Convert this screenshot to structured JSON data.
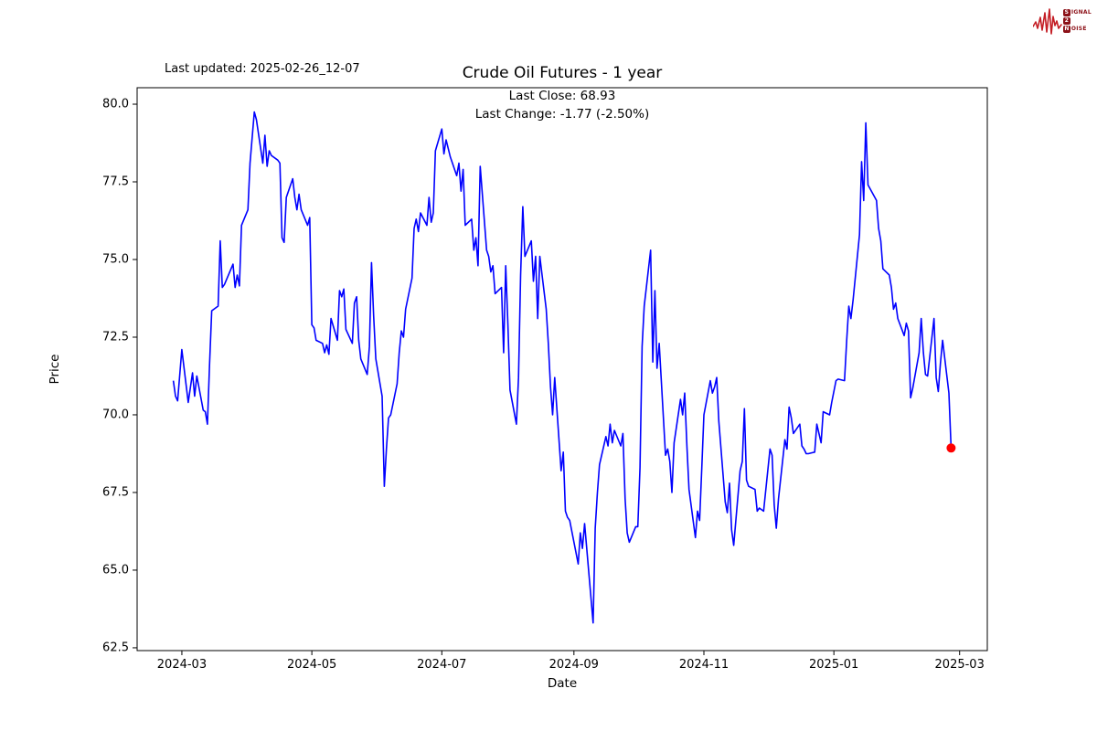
{
  "header": {
    "last_updated": "Last updated: 2025-02-26_12-07",
    "title": "Crude Oil Futures - 1 year",
    "annotation_line1": "Last Close: 68.93",
    "annotation_line2": "Last Change: -1.77 (-2.50%)"
  },
  "logo": {
    "badge1": "S",
    "rest1": "IGNAL",
    "badge2": "2",
    "badge3": "N",
    "rest3": "OISE",
    "wave_color": "#c41e25",
    "badge_color": "#8c1118"
  },
  "chart_data": {
    "type": "line",
    "title": "Crude Oil Futures - 1 year",
    "xlabel": "Date",
    "ylabel": "Price",
    "legend": "none",
    "grid": false,
    "line_color": "#0000ff",
    "marker_color": "#ff0000",
    "axis_color": "#000000",
    "xlim": [
      "2024-02-09",
      "2025-03-14"
    ],
    "ylim": [
      62.41,
      80.53
    ],
    "x_ticks": [
      {
        "label": "2024-03",
        "date": "2024-03-01"
      },
      {
        "label": "2024-05",
        "date": "2024-05-01"
      },
      {
        "label": "2024-07",
        "date": "2024-07-01"
      },
      {
        "label": "2024-09",
        "date": "2024-09-01"
      },
      {
        "label": "2024-11",
        "date": "2024-11-01"
      },
      {
        "label": "2025-01",
        "date": "2025-01-01"
      },
      {
        "label": "2025-03",
        "date": "2025-03-01"
      }
    ],
    "y_ticks": [
      {
        "label": "62.5",
        "value": 62.5
      },
      {
        "label": "65.0",
        "value": 65.0
      },
      {
        "label": "67.5",
        "value": 67.5
      },
      {
        "label": "70.0",
        "value": 70.0
      },
      {
        "label": "72.5",
        "value": 72.5
      },
      {
        "label": "75.0",
        "value": 75.0
      },
      {
        "label": "77.5",
        "value": 77.5
      },
      {
        "label": "80.0",
        "value": 80.0
      }
    ],
    "last_close": 68.93,
    "last_change": "-1.77 (-2.50%)",
    "series": [
      {
        "name": "Crude Oil Futures",
        "points": [
          [
            "2024-02-26",
            71.1
          ],
          [
            "2024-02-27",
            70.6
          ],
          [
            "2024-02-28",
            70.45
          ],
          [
            "2024-03-01",
            72.1
          ],
          [
            "2024-03-04",
            70.4
          ],
          [
            "2024-03-06",
            71.35
          ],
          [
            "2024-03-07",
            70.6
          ],
          [
            "2024-03-08",
            71.25
          ],
          [
            "2024-03-11",
            70.15
          ],
          [
            "2024-03-12",
            70.1
          ],
          [
            "2024-03-13",
            69.7
          ],
          [
            "2024-03-14",
            71.6
          ],
          [
            "2024-03-15",
            73.35
          ],
          [
            "2024-03-18",
            73.5
          ],
          [
            "2024-03-19",
            75.6
          ],
          [
            "2024-03-20",
            74.1
          ],
          [
            "2024-03-21",
            74.2
          ],
          [
            "2024-03-25",
            74.85
          ],
          [
            "2024-03-26",
            74.1
          ],
          [
            "2024-03-27",
            74.5
          ],
          [
            "2024-03-28",
            74.15
          ],
          [
            "2024-03-29",
            76.1
          ],
          [
            "2024-04-01",
            76.6
          ],
          [
            "2024-04-02",
            78.1
          ],
          [
            "2024-04-04",
            79.75
          ],
          [
            "2024-04-05",
            79.5
          ],
          [
            "2024-04-08",
            78.1
          ],
          [
            "2024-04-09",
            79.0
          ],
          [
            "2024-04-10",
            78.0
          ],
          [
            "2024-04-11",
            78.5
          ],
          [
            "2024-04-12",
            78.35
          ],
          [
            "2024-04-15",
            78.2
          ],
          [
            "2024-04-16",
            78.1
          ],
          [
            "2024-04-17",
            75.7
          ],
          [
            "2024-04-18",
            75.55
          ],
          [
            "2024-04-19",
            77.0
          ],
          [
            "2024-04-22",
            77.6
          ],
          [
            "2024-04-23",
            77.0
          ],
          [
            "2024-04-24",
            76.6
          ],
          [
            "2024-04-25",
            77.1
          ],
          [
            "2024-04-26",
            76.6
          ],
          [
            "2024-04-29",
            76.1
          ],
          [
            "2024-04-30",
            76.35
          ],
          [
            "2024-05-01",
            72.9
          ],
          [
            "2024-05-02",
            72.8
          ],
          [
            "2024-05-03",
            72.4
          ],
          [
            "2024-05-06",
            72.3
          ],
          [
            "2024-05-07",
            72.0
          ],
          [
            "2024-05-08",
            72.25
          ],
          [
            "2024-05-09",
            71.95
          ],
          [
            "2024-05-10",
            73.1
          ],
          [
            "2024-05-13",
            72.4
          ],
          [
            "2024-05-14",
            74.0
          ],
          [
            "2024-05-15",
            73.8
          ],
          [
            "2024-05-16",
            74.05
          ],
          [
            "2024-05-17",
            72.75
          ],
          [
            "2024-05-20",
            72.3
          ],
          [
            "2024-05-21",
            73.6
          ],
          [
            "2024-05-22",
            73.8
          ],
          [
            "2024-05-23",
            72.4
          ],
          [
            "2024-05-24",
            71.8
          ],
          [
            "2024-05-27",
            71.3
          ],
          [
            "2024-05-28",
            72.2
          ],
          [
            "2024-05-29",
            74.9
          ],
          [
            "2024-05-30",
            73.2
          ],
          [
            "2024-05-31",
            71.8
          ],
          [
            "2024-06-03",
            70.6
          ],
          [
            "2024-06-04",
            67.7
          ],
          [
            "2024-06-05",
            68.9
          ],
          [
            "2024-06-06",
            69.9
          ],
          [
            "2024-06-07",
            70.0
          ],
          [
            "2024-06-10",
            71.0
          ],
          [
            "2024-06-11",
            72.0
          ],
          [
            "2024-06-12",
            72.7
          ],
          [
            "2024-06-13",
            72.5
          ],
          [
            "2024-06-14",
            73.4
          ],
          [
            "2024-06-17",
            74.4
          ],
          [
            "2024-06-18",
            76.0
          ],
          [
            "2024-06-19",
            76.3
          ],
          [
            "2024-06-20",
            75.9
          ],
          [
            "2024-06-21",
            76.5
          ],
          [
            "2024-06-24",
            76.1
          ],
          [
            "2024-06-25",
            77.0
          ],
          [
            "2024-06-26",
            76.2
          ],
          [
            "2024-06-27",
            76.5
          ],
          [
            "2024-06-28",
            78.5
          ],
          [
            "2024-07-01",
            79.2
          ],
          [
            "2024-07-02",
            78.4
          ],
          [
            "2024-07-03",
            78.85
          ],
          [
            "2024-07-05",
            78.3
          ],
          [
            "2024-07-08",
            77.7
          ],
          [
            "2024-07-09",
            78.1
          ],
          [
            "2024-07-10",
            77.2
          ],
          [
            "2024-07-11",
            77.9
          ],
          [
            "2024-07-12",
            76.1
          ],
          [
            "2024-07-15",
            76.3
          ],
          [
            "2024-07-16",
            75.3
          ],
          [
            "2024-07-17",
            75.7
          ],
          [
            "2024-07-18",
            74.8
          ],
          [
            "2024-07-19",
            78.0
          ],
          [
            "2024-07-22",
            75.3
          ],
          [
            "2024-07-23",
            75.1
          ],
          [
            "2024-07-24",
            74.6
          ],
          [
            "2024-07-25",
            74.8
          ],
          [
            "2024-07-26",
            73.9
          ],
          [
            "2024-07-29",
            74.1
          ],
          [
            "2024-07-30",
            72.0
          ],
          [
            "2024-07-31",
            74.8
          ],
          [
            "2024-08-01",
            72.9
          ],
          [
            "2024-08-02",
            70.8
          ],
          [
            "2024-08-05",
            69.7
          ],
          [
            "2024-08-06",
            71.2
          ],
          [
            "2024-08-07",
            74.5
          ],
          [
            "2024-08-08",
            76.7
          ],
          [
            "2024-08-09",
            75.1
          ],
          [
            "2024-08-12",
            75.6
          ],
          [
            "2024-08-13",
            74.3
          ],
          [
            "2024-08-14",
            75.1
          ],
          [
            "2024-08-15",
            73.1
          ],
          [
            "2024-08-16",
            75.1
          ],
          [
            "2024-08-19",
            73.4
          ],
          [
            "2024-08-20",
            72.3
          ],
          [
            "2024-08-21",
            70.9
          ],
          [
            "2024-08-22",
            70.0
          ],
          [
            "2024-08-23",
            71.2
          ],
          [
            "2024-08-26",
            68.2
          ],
          [
            "2024-08-27",
            68.8
          ],
          [
            "2024-08-28",
            66.9
          ],
          [
            "2024-08-29",
            66.7
          ],
          [
            "2024-08-30",
            66.6
          ],
          [
            "2024-09-03",
            65.2
          ],
          [
            "2024-09-04",
            66.2
          ],
          [
            "2024-09-05",
            65.7
          ],
          [
            "2024-09-06",
            66.5
          ],
          [
            "2024-09-10",
            63.3
          ],
          [
            "2024-09-11",
            66.35
          ],
          [
            "2024-09-12",
            67.5
          ],
          [
            "2024-09-13",
            68.4
          ],
          [
            "2024-09-16",
            69.3
          ],
          [
            "2024-09-17",
            69.0
          ],
          [
            "2024-09-18",
            69.7
          ],
          [
            "2024-09-19",
            69.1
          ],
          [
            "2024-09-20",
            69.5
          ],
          [
            "2024-09-23",
            69.0
          ],
          [
            "2024-09-24",
            69.4
          ],
          [
            "2024-09-25",
            67.3
          ],
          [
            "2024-09-26",
            66.2
          ],
          [
            "2024-09-27",
            65.9
          ],
          [
            "2024-09-30",
            66.4
          ],
          [
            "2024-10-01",
            66.4
          ],
          [
            "2024-10-02",
            68.3
          ],
          [
            "2024-10-03",
            72.2
          ],
          [
            "2024-10-04",
            73.5
          ],
          [
            "2024-10-07",
            75.3
          ],
          [
            "2024-10-08",
            71.7
          ],
          [
            "2024-10-09",
            74.0
          ],
          [
            "2024-10-10",
            71.5
          ],
          [
            "2024-10-11",
            72.3
          ],
          [
            "2024-10-14",
            68.7
          ],
          [
            "2024-10-15",
            68.9
          ],
          [
            "2024-10-16",
            68.5
          ],
          [
            "2024-10-17",
            67.5
          ],
          [
            "2024-10-18",
            69.1
          ],
          [
            "2024-10-21",
            70.5
          ],
          [
            "2024-10-22",
            70.0
          ],
          [
            "2024-10-23",
            70.7
          ],
          [
            "2024-10-24",
            69.0
          ],
          [
            "2024-10-25",
            67.6
          ],
          [
            "2024-10-28",
            66.05
          ],
          [
            "2024-10-29",
            66.9
          ],
          [
            "2024-10-30",
            66.6
          ],
          [
            "2024-10-31",
            68.3
          ],
          [
            "2024-11-01",
            70.0
          ],
          [
            "2024-11-04",
            71.1
          ],
          [
            "2024-11-05",
            70.7
          ],
          [
            "2024-11-06",
            70.9
          ],
          [
            "2024-11-07",
            71.2
          ],
          [
            "2024-11-08",
            69.8
          ],
          [
            "2024-11-11",
            67.2
          ],
          [
            "2024-11-12",
            66.85
          ],
          [
            "2024-11-13",
            67.8
          ],
          [
            "2024-11-14",
            66.3
          ],
          [
            "2024-11-15",
            65.8
          ],
          [
            "2024-11-18",
            68.2
          ],
          [
            "2024-11-19",
            68.5
          ],
          [
            "2024-11-20",
            70.2
          ],
          [
            "2024-11-21",
            67.9
          ],
          [
            "2024-11-22",
            67.7
          ],
          [
            "2024-11-25",
            67.6
          ],
          [
            "2024-11-26",
            66.9
          ],
          [
            "2024-11-27",
            67.0
          ],
          [
            "2024-11-29",
            66.9
          ],
          [
            "2024-12-02",
            68.9
          ],
          [
            "2024-12-03",
            68.7
          ],
          [
            "2024-12-04",
            67.1
          ],
          [
            "2024-12-05",
            66.35
          ],
          [
            "2024-12-06",
            67.3
          ],
          [
            "2024-12-09",
            69.2
          ],
          [
            "2024-12-10",
            68.9
          ],
          [
            "2024-12-11",
            70.25
          ],
          [
            "2024-12-12",
            69.9
          ],
          [
            "2024-12-13",
            69.4
          ],
          [
            "2024-12-16",
            69.7
          ],
          [
            "2024-12-17",
            69.0
          ],
          [
            "2024-12-18",
            68.9
          ],
          [
            "2024-12-19",
            68.75
          ],
          [
            "2024-12-20",
            68.75
          ],
          [
            "2024-12-23",
            68.8
          ],
          [
            "2024-12-24",
            69.7
          ],
          [
            "2024-12-26",
            69.1
          ],
          [
            "2024-12-27",
            70.1
          ],
          [
            "2024-12-30",
            70.0
          ],
          [
            "2024-12-31",
            70.4
          ],
          [
            "2025-01-02",
            71.1
          ],
          [
            "2025-01-03",
            71.15
          ],
          [
            "2025-01-06",
            71.1
          ],
          [
            "2025-01-07",
            72.4
          ],
          [
            "2025-01-08",
            73.5
          ],
          [
            "2025-01-09",
            73.1
          ],
          [
            "2025-01-10",
            73.7
          ],
          [
            "2025-01-13",
            75.8
          ],
          [
            "2025-01-14",
            78.15
          ],
          [
            "2025-01-15",
            76.9
          ],
          [
            "2025-01-16",
            79.4
          ],
          [
            "2025-01-17",
            77.4
          ],
          [
            "2025-01-21",
            76.9
          ],
          [
            "2025-01-22",
            76.0
          ],
          [
            "2025-01-23",
            75.6
          ],
          [
            "2025-01-24",
            74.7
          ],
          [
            "2025-01-27",
            74.5
          ],
          [
            "2025-01-28",
            74.1
          ],
          [
            "2025-01-29",
            73.4
          ],
          [
            "2025-01-30",
            73.6
          ],
          [
            "2025-01-31",
            73.1
          ],
          [
            "2025-02-03",
            72.55
          ],
          [
            "2025-02-04",
            72.95
          ],
          [
            "2025-02-05",
            72.7
          ],
          [
            "2025-02-06",
            70.55
          ],
          [
            "2025-02-07",
            70.85
          ],
          [
            "2025-02-10",
            72.0
          ],
          [
            "2025-02-11",
            73.1
          ],
          [
            "2025-02-12",
            72.0
          ],
          [
            "2025-02-13",
            71.3
          ],
          [
            "2025-02-14",
            71.25
          ],
          [
            "2025-02-17",
            73.1
          ],
          [
            "2025-02-18",
            71.2
          ],
          [
            "2025-02-19",
            70.75
          ],
          [
            "2025-02-20",
            71.65
          ],
          [
            "2025-02-21",
            72.4
          ],
          [
            "2025-02-24",
            70.7
          ],
          [
            "2025-02-25",
            68.93
          ]
        ]
      }
    ]
  }
}
